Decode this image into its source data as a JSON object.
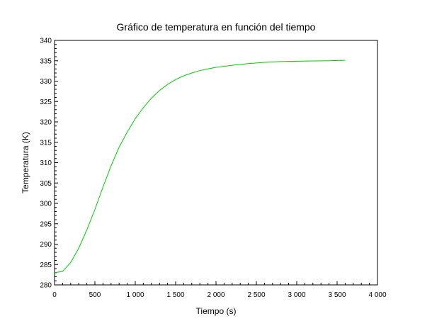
{
  "chart_data": {
    "type": "line",
    "title": "Gráfico de temperatura en función del tiempo",
    "xlabel": "Tiempo (s)",
    "ylabel": "Temperatura (K)",
    "xlim": [
      0,
      4000
    ],
    "ylim": [
      280,
      340
    ],
    "x_ticks": [
      0,
      500,
      1000,
      1500,
      2000,
      2500,
      3000,
      3500,
      4000
    ],
    "x_tick_labels": [
      "0",
      "500",
      "1 000",
      "1 500",
      "2 000",
      "2 500",
      "3 000",
      "3 500",
      "4 000"
    ],
    "y_ticks": [
      280,
      285,
      290,
      295,
      300,
      305,
      310,
      315,
      320,
      325,
      330,
      335,
      340
    ],
    "y_tick_labels": [
      "280",
      "285",
      "290",
      "295",
      "300",
      "305",
      "310",
      "315",
      "320",
      "325",
      "330",
      "335",
      "340"
    ],
    "grid": false,
    "line_color": "#00cc00",
    "series": [
      {
        "x": [
          0,
          100,
          200,
          300,
          400,
          500,
          600,
          700,
          800,
          900,
          1000,
          1100,
          1200,
          1300,
          1400,
          1500,
          1600,
          1700,
          1800,
          1900,
          2000,
          2200,
          2400,
          2600,
          2800,
          3000,
          3200,
          3400,
          3600
        ],
        "y": [
          283,
          283.3,
          285.5,
          289.0,
          293.5,
          298.5,
          304.0,
          309.2,
          313.8,
          317.5,
          320.8,
          323.5,
          325.8,
          327.7,
          329.2,
          330.4,
          331.3,
          332.0,
          332.6,
          333.0,
          333.4,
          333.9,
          334.3,
          334.6,
          334.8,
          334.9,
          334.95,
          335.0,
          335.1
        ]
      }
    ]
  }
}
